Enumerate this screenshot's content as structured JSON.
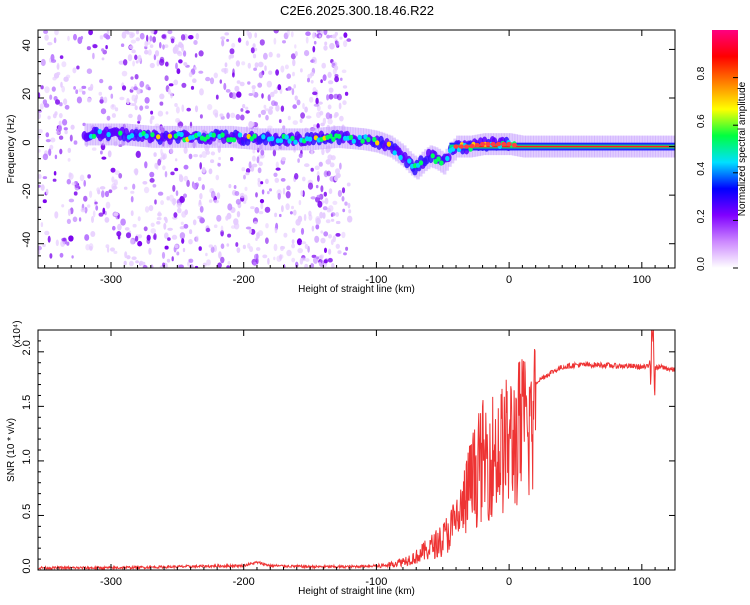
{
  "title": "C2E6.2025.300.18.46.R22",
  "chart_data": [
    {
      "type": "heatmap",
      "name": "spectrogram",
      "xlabel": "Height of straight line (km)",
      "ylabel": "Frequency (Hz)",
      "xlim": [
        -355,
        125
      ],
      "ylim": [
        -50,
        48
      ],
      "xticks": [
        -300,
        -200,
        -100,
        0,
        100
      ],
      "xtick_labels": [
        "-300",
        "-200",
        "-100",
        "0",
        "100"
      ],
      "yticks": [
        -40,
        -20,
        0,
        20,
        40
      ],
      "ytick_labels": [
        "-40",
        "-20",
        "0",
        "20",
        "40"
      ],
      "colorbar": {
        "label": "Normalized spectral amplitude",
        "range": [
          0,
          1
        ],
        "ticks": [
          0.0,
          0.2,
          0.4,
          0.6,
          0.8
        ],
        "tick_labels": [
          "0.0",
          "0.2",
          "0.4",
          "0.6",
          "0.8"
        ],
        "colors": [
          "#ffffff",
          "#cc88ff",
          "#8000ff",
          "#0000ff",
          "#00e0ff",
          "#00ff40",
          "#ffff00",
          "#ff8000",
          "#ff0000",
          "#ff0080"
        ]
      },
      "ridge": {
        "x": [
          -310,
          -290,
          -270,
          -250,
          -230,
          -210,
          -190,
          -170,
          -150,
          -130,
          -110,
          -100,
          -90,
          -80,
          -75,
          -70,
          -65,
          -60,
          -55,
          -50,
          -45,
          -40,
          -30,
          -20,
          -10,
          0,
          10,
          50,
          100,
          125
        ],
        "y": [
          5,
          5,
          4,
          4,
          4,
          4,
          3,
          3,
          3,
          4,
          3,
          2,
          0,
          -4,
          -7,
          -9,
          -6,
          -4,
          -5,
          -7,
          -3,
          0,
          0,
          1,
          1,
          1,
          0,
          0,
          0,
          0
        ]
      }
    },
    {
      "type": "line",
      "name": "snr",
      "xlabel": "Height of straight line (km)",
      "ylabel": "SNR (10 * v/v)",
      "y_multiplier": "(x10⁴)",
      "xlim": [
        -355,
        125
      ],
      "ylim": [
        0,
        2.2
      ],
      "xticks": [
        -300,
        -200,
        -100,
        0,
        100
      ],
      "xtick_labels": [
        "-300",
        "-200",
        "-100",
        "0",
        "100"
      ],
      "yticks": [
        0.0,
        0.5,
        1.0,
        1.5,
        2.0
      ],
      "ytick_labels": [
        "0.0",
        "0.5",
        "1.0",
        "1.5",
        "2.0"
      ],
      "color": "#ee3333",
      "x": [
        -355,
        -300,
        -250,
        -200,
        -190,
        -180,
        -150,
        -120,
        -100,
        -90,
        -80,
        -70,
        -60,
        -50,
        -45,
        -40,
        -35,
        -30,
        -25,
        -20,
        -15,
        -10,
        -5,
        0,
        10,
        20,
        30,
        40,
        50,
        60,
        70,
        80,
        90,
        100,
        105,
        108,
        110,
        115,
        125
      ],
      "y": [
        0.02,
        0.02,
        0.03,
        0.04,
        0.07,
        0.04,
        0.03,
        0.03,
        0.04,
        0.06,
        0.1,
        0.15,
        0.25,
        0.35,
        0.45,
        0.55,
        0.7,
        0.95,
        1.1,
        1.25,
        1.3,
        1.35,
        1.38,
        1.45,
        1.6,
        1.72,
        1.8,
        1.86,
        1.88,
        1.88,
        1.88,
        1.87,
        1.87,
        1.86,
        1.86,
        2.1,
        1.85,
        1.86,
        1.83
      ]
    }
  ]
}
